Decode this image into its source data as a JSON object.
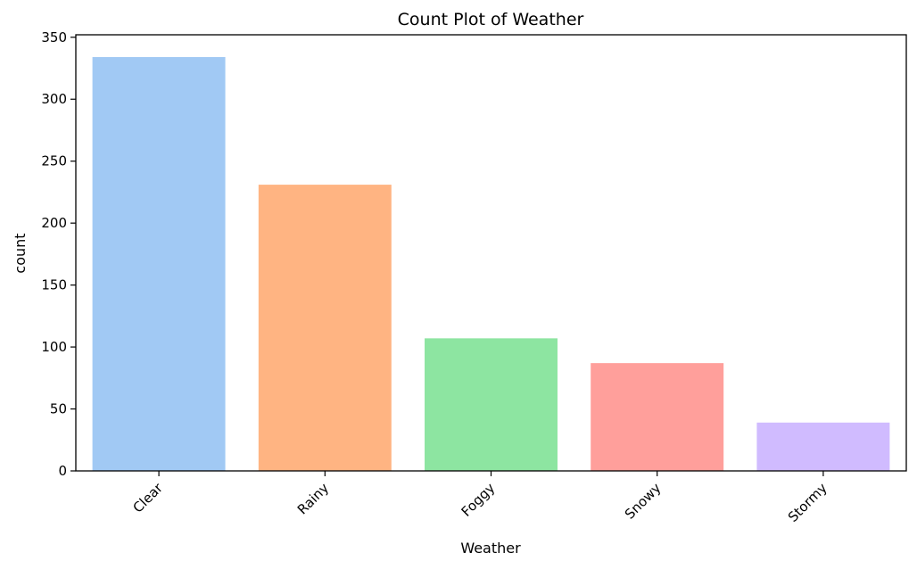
{
  "chart_data": {
    "type": "bar",
    "title": "Count Plot of Weather",
    "xlabel": "Weather",
    "ylabel": "count",
    "categories": [
      "Clear",
      "Rainy",
      "Foggy",
      "Snowy",
      "Stormy"
    ],
    "values": [
      334,
      231,
      107,
      87,
      39
    ],
    "colors": [
      "#a1c9f4",
      "#ffb482",
      "#8de5a1",
      "#ff9f9b",
      "#d0bbff"
    ],
    "ylim": [
      0,
      352
    ],
    "yticks": [
      0,
      50,
      100,
      150,
      200,
      250,
      300,
      350
    ],
    "grid": false
  }
}
